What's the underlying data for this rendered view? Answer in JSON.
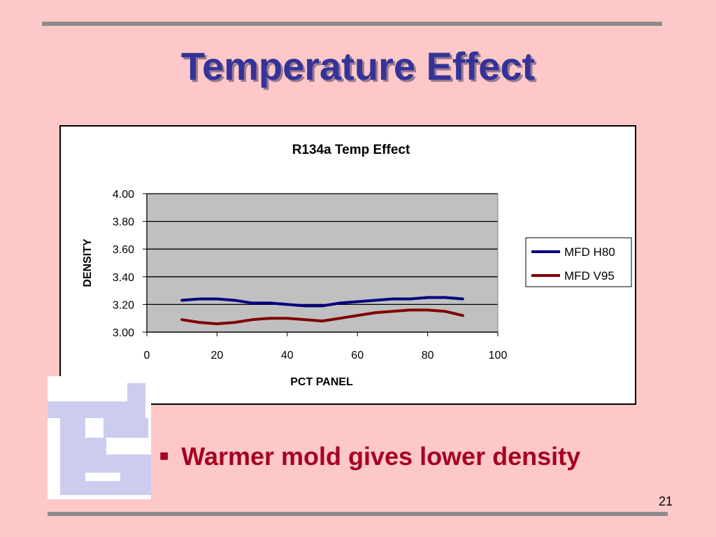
{
  "slide": {
    "title": "Temperature Effect",
    "bullet_text": "Warmer mold gives lower density",
    "page_number": "21"
  },
  "colors": {
    "background": "#FFC8C8",
    "title": "#333399",
    "bullet": "#A50021",
    "plot_area": "#C0C0C0",
    "series_1": "#000080",
    "series_2": "#800000",
    "logo": "#CCCCEE"
  },
  "chart_data": {
    "type": "line",
    "title": "R134a Temp Effect",
    "xlabel": "PCT PANEL",
    "ylabel": "DENSITY",
    "xlim": [
      0,
      100
    ],
    "ylim": [
      3.0,
      4.0
    ],
    "x_ticks": [
      "0",
      "20",
      "40",
      "60",
      "80",
      "100"
    ],
    "y_ticks": [
      "3.00",
      "3.20",
      "3.40",
      "3.60",
      "3.80",
      "4.00"
    ],
    "grid": "horizontal",
    "legend": "right",
    "series": [
      {
        "name": "MFD H80",
        "color": "#000080",
        "x": [
          10,
          15,
          20,
          25,
          30,
          35,
          40,
          45,
          50,
          55,
          60,
          65,
          70,
          75,
          80,
          85,
          90
        ],
        "y": [
          3.23,
          3.24,
          3.24,
          3.23,
          3.21,
          3.21,
          3.2,
          3.19,
          3.19,
          3.21,
          3.22,
          3.23,
          3.24,
          3.24,
          3.25,
          3.25,
          3.24
        ]
      },
      {
        "name": "MFD V95",
        "color": "#800000",
        "x": [
          10,
          15,
          20,
          25,
          30,
          35,
          40,
          45,
          50,
          55,
          60,
          65,
          70,
          75,
          80,
          85,
          90
        ],
        "y": [
          3.09,
          3.07,
          3.06,
          3.07,
          3.09,
          3.1,
          3.1,
          3.09,
          3.08,
          3.1,
          3.12,
          3.14,
          3.15,
          3.16,
          3.16,
          3.15,
          3.12
        ]
      }
    ]
  }
}
